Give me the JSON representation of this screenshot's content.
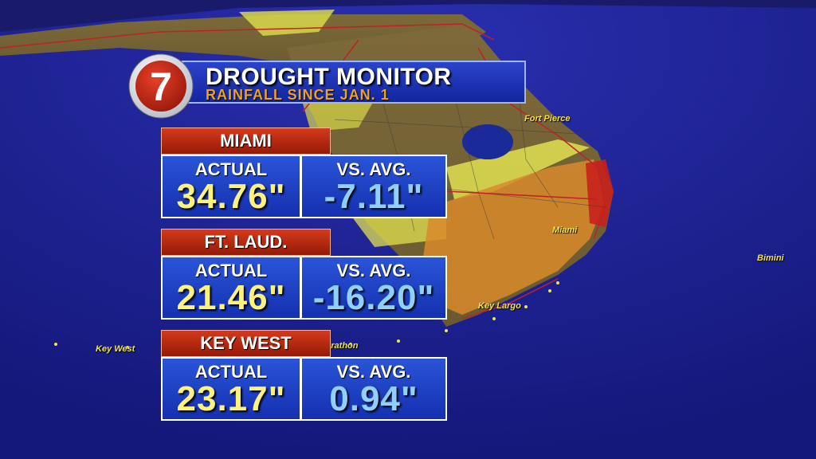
{
  "header": {
    "logo_number": "7",
    "title": "DROUGHT MONITOR",
    "subtitle": "RAINFALL SINCE JAN. 1"
  },
  "stations": [
    {
      "name": "MIAMI",
      "actual_label": "ACTUAL",
      "actual_value": "34.76\"",
      "avg_label": "VS. AVG.",
      "avg_value": "-7.11\""
    },
    {
      "name": "FT. LAUD.",
      "actual_label": "ACTUAL",
      "actual_value": "21.46\"",
      "avg_label": "VS. AVG.",
      "avg_value": "-16.20\""
    },
    {
      "name": "KEY WEST",
      "actual_label": "ACTUAL",
      "actual_value": "23.17\"",
      "avg_label": "VS. AVG.",
      "avg_value": "0.94\""
    }
  ],
  "map_labels": {
    "fort_pierce": "Fort Pierce",
    "miami": "Miami",
    "key_largo": "Key Largo",
    "bimini": "Bimini",
    "key_west": "Key West",
    "marathon": "Marathon"
  },
  "colors": {
    "ocean": "#1a1f8c",
    "land": "#8a6a2a",
    "drought_yellow": "#d8d84a",
    "drought_orange": "#d88a2a",
    "drought_red": "#c8201a",
    "accent_blue": "#1530b0",
    "label_red": "#c2300f"
  }
}
